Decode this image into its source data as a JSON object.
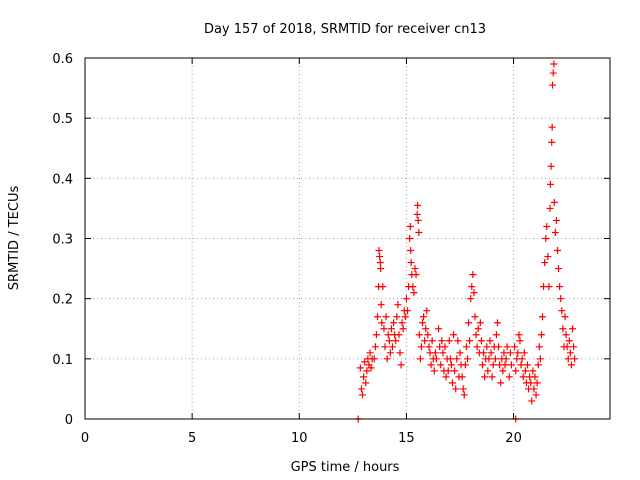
{
  "chart_data": {
    "type": "scatter",
    "title": "Day 157 of 2018, SRMTID for receiver cn13",
    "xlabel": "GPS time / hours",
    "ylabel": "SRMTID / TECUs",
    "xlim": [
      0,
      24.5
    ],
    "ylim": [
      0,
      0.6
    ],
    "x_ticks": [
      0,
      5,
      10,
      15,
      20
    ],
    "x_tick_labels": [
      "0",
      "5",
      "10",
      "15",
      "20"
    ],
    "y_ticks": [
      0,
      0.1,
      0.2,
      0.3,
      0.4,
      0.5,
      0.6
    ],
    "y_tick_labels": [
      "0",
      "0.1",
      "0.2",
      "0.3",
      "0.4",
      "0.5",
      "0.6"
    ],
    "grid": true,
    "marker": "plus",
    "color": "#ff0000",
    "series": [
      {
        "name": "SRMTID",
        "points": [
          [
            12.75,
            0.0
          ],
          [
            20.1,
            0.0
          ],
          [
            12.85,
            0.085
          ],
          [
            12.9,
            0.05
          ],
          [
            12.95,
            0.04
          ],
          [
            13.0,
            0.07
          ],
          [
            13.05,
            0.095
          ],
          [
            13.1,
            0.06
          ],
          [
            13.15,
            0.08
          ],
          [
            13.2,
            0.1
          ],
          [
            13.25,
            0.09
          ],
          [
            13.3,
            0.11
          ],
          [
            13.35,
            0.085
          ],
          [
            13.4,
            0.1
          ],
          [
            13.5,
            0.1
          ],
          [
            13.55,
            0.12
          ],
          [
            13.6,
            0.14
          ],
          [
            13.65,
            0.17
          ],
          [
            13.7,
            0.22
          ],
          [
            13.72,
            0.28
          ],
          [
            13.75,
            0.27
          ],
          [
            13.78,
            0.26
          ],
          [
            13.8,
            0.25
          ],
          [
            13.82,
            0.19
          ],
          [
            13.85,
            0.16
          ],
          [
            13.9,
            0.22
          ],
          [
            13.95,
            0.15
          ],
          [
            14.0,
            0.12
          ],
          [
            14.05,
            0.17
          ],
          [
            14.1,
            0.1
          ],
          [
            14.15,
            0.14
          ],
          [
            14.2,
            0.13
          ],
          [
            14.25,
            0.11
          ],
          [
            14.3,
            0.15
          ],
          [
            14.35,
            0.12
          ],
          [
            14.4,
            0.16
          ],
          [
            14.45,
            0.14
          ],
          [
            14.5,
            0.13
          ],
          [
            14.55,
            0.17
          ],
          [
            14.6,
            0.19
          ],
          [
            14.65,
            0.14
          ],
          [
            14.7,
            0.11
          ],
          [
            14.75,
            0.09
          ],
          [
            14.8,
            0.16
          ],
          [
            14.85,
            0.15
          ],
          [
            14.9,
            0.18
          ],
          [
            14.95,
            0.17
          ],
          [
            15.0,
            0.2
          ],
          [
            15.05,
            0.18
          ],
          [
            15.1,
            0.22
          ],
          [
            15.15,
            0.3
          ],
          [
            15.18,
            0.32
          ],
          [
            15.2,
            0.28
          ],
          [
            15.22,
            0.26
          ],
          [
            15.25,
            0.24
          ],
          [
            15.3,
            0.22
          ],
          [
            15.35,
            0.21
          ],
          [
            15.4,
            0.25
          ],
          [
            15.45,
            0.24
          ],
          [
            15.5,
            0.34
          ],
          [
            15.52,
            0.355
          ],
          [
            15.55,
            0.33
          ],
          [
            15.58,
            0.31
          ],
          [
            15.6,
            0.14
          ],
          [
            15.65,
            0.1
          ],
          [
            15.7,
            0.12
          ],
          [
            15.75,
            0.16
          ],
          [
            15.8,
            0.17
          ],
          [
            15.85,
            0.13
          ],
          [
            15.9,
            0.15
          ],
          [
            15.95,
            0.18
          ],
          [
            16.0,
            0.14
          ],
          [
            16.05,
            0.12
          ],
          [
            16.1,
            0.11
          ],
          [
            16.15,
            0.09
          ],
          [
            16.2,
            0.13
          ],
          [
            16.25,
            0.1
          ],
          [
            16.3,
            0.08
          ],
          [
            16.35,
            0.11
          ],
          [
            16.4,
            0.1
          ],
          [
            16.5,
            0.15
          ],
          [
            16.55,
            0.12
          ],
          [
            16.6,
            0.09
          ],
          [
            16.65,
            0.13
          ],
          [
            16.7,
            0.11
          ],
          [
            16.75,
            0.08
          ],
          [
            16.8,
            0.12
          ],
          [
            16.85,
            0.07
          ],
          [
            16.9,
            0.1
          ],
          [
            16.95,
            0.08
          ],
          [
            17.0,
            0.13
          ],
          [
            17.05,
            0.1
          ],
          [
            17.1,
            0.09
          ],
          [
            17.15,
            0.06
          ],
          [
            17.2,
            0.14
          ],
          [
            17.25,
            0.08
          ],
          [
            17.3,
            0.05
          ],
          [
            17.35,
            0.1
          ],
          [
            17.4,
            0.13
          ],
          [
            17.45,
            0.07
          ],
          [
            17.5,
            0.11
          ],
          [
            17.55,
            0.09
          ],
          [
            17.6,
            0.07
          ],
          [
            17.65,
            0.05
          ],
          [
            17.7,
            0.04
          ],
          [
            17.75,
            0.09
          ],
          [
            17.8,
            0.12
          ],
          [
            17.85,
            0.1
          ],
          [
            17.9,
            0.16
          ],
          [
            17.95,
            0.13
          ],
          [
            18.0,
            0.2
          ],
          [
            18.05,
            0.22
          ],
          [
            18.1,
            0.24
          ],
          [
            18.15,
            0.21
          ],
          [
            18.2,
            0.17
          ],
          [
            18.25,
            0.14
          ],
          [
            18.3,
            0.12
          ],
          [
            18.35,
            0.15
          ],
          [
            18.4,
            0.11
          ],
          [
            18.45,
            0.16
          ],
          [
            18.5,
            0.13
          ],
          [
            18.55,
            0.09
          ],
          [
            18.6,
            0.11
          ],
          [
            18.65,
            0.07
          ],
          [
            18.7,
            0.1
          ],
          [
            18.75,
            0.12
          ],
          [
            18.8,
            0.08
          ],
          [
            18.85,
            0.1
          ],
          [
            18.9,
            0.13
          ],
          [
            18.95,
            0.11
          ],
          [
            19.0,
            0.07
          ],
          [
            19.05,
            0.09
          ],
          [
            19.1,
            0.12
          ],
          [
            19.15,
            0.1
          ],
          [
            19.2,
            0.14
          ],
          [
            19.25,
            0.16
          ],
          [
            19.3,
            0.12
          ],
          [
            19.35,
            0.09
          ],
          [
            19.4,
            0.06
          ],
          [
            19.45,
            0.1
          ],
          [
            19.5,
            0.08
          ],
          [
            19.55,
            0.11
          ],
          [
            19.6,
            0.09
          ],
          [
            19.65,
            0.1
          ],
          [
            19.7,
            0.12
          ],
          [
            19.8,
            0.07
          ],
          [
            19.85,
            0.11
          ],
          [
            19.9,
            0.09
          ],
          [
            20.05,
            0.12
          ],
          [
            20.1,
            0.08
          ],
          [
            20.15,
            0.1
          ],
          [
            20.2,
            0.11
          ],
          [
            20.25,
            0.14
          ],
          [
            20.3,
            0.13
          ],
          [
            20.35,
            0.09
          ],
          [
            20.4,
            0.1
          ],
          [
            20.45,
            0.07
          ],
          [
            20.5,
            0.11
          ],
          [
            20.55,
            0.08
          ],
          [
            20.6,
            0.06
          ],
          [
            20.65,
            0.09
          ],
          [
            20.7,
            0.05
          ],
          [
            20.75,
            0.07
          ],
          [
            20.8,
            0.06
          ],
          [
            20.85,
            0.03
          ],
          [
            20.9,
            0.08
          ],
          [
            20.95,
            0.05
          ],
          [
            21.0,
            0.07
          ],
          [
            21.05,
            0.04
          ],
          [
            21.1,
            0.06
          ],
          [
            21.15,
            0.09
          ],
          [
            21.2,
            0.12
          ],
          [
            21.25,
            0.1
          ],
          [
            21.3,
            0.14
          ],
          [
            21.35,
            0.17
          ],
          [
            21.4,
            0.22
          ],
          [
            21.45,
            0.26
          ],
          [
            21.5,
            0.3
          ],
          [
            21.55,
            0.32
          ],
          [
            21.6,
            0.27
          ],
          [
            21.65,
            0.22
          ],
          [
            21.7,
            0.35
          ],
          [
            21.72,
            0.39
          ],
          [
            21.75,
            0.42
          ],
          [
            21.78,
            0.46
          ],
          [
            21.8,
            0.485
          ],
          [
            21.82,
            0.555
          ],
          [
            21.85,
            0.575
          ],
          [
            21.88,
            0.59
          ],
          [
            21.9,
            0.36
          ],
          [
            21.95,
            0.31
          ],
          [
            22.0,
            0.33
          ],
          [
            22.05,
            0.28
          ],
          [
            22.1,
            0.25
          ],
          [
            22.15,
            0.22
          ],
          [
            22.2,
            0.2
          ],
          [
            22.25,
            0.18
          ],
          [
            22.3,
            0.15
          ],
          [
            22.35,
            0.12
          ],
          [
            22.4,
            0.17
          ],
          [
            22.45,
            0.14
          ],
          [
            22.5,
            0.12
          ],
          [
            22.55,
            0.1
          ],
          [
            22.6,
            0.13
          ],
          [
            22.65,
            0.11
          ],
          [
            22.7,
            0.09
          ],
          [
            22.75,
            0.15
          ],
          [
            22.8,
            0.12
          ],
          [
            22.85,
            0.1
          ]
        ]
      }
    ]
  }
}
